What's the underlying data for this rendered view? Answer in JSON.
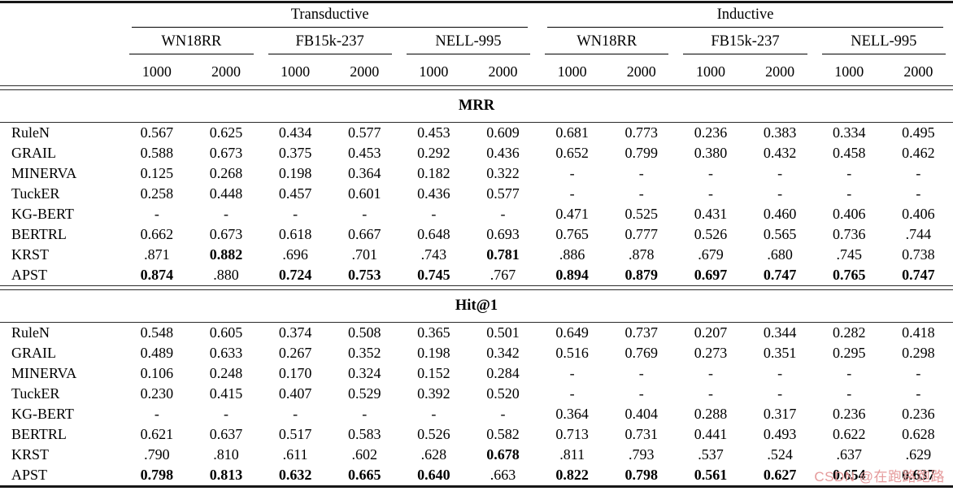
{
  "table": {
    "groups": [
      "Transductive",
      "Inductive"
    ],
    "datasets": [
      "WN18RR",
      "FB15k-237",
      "NELL-995"
    ],
    "shots": [
      "1000",
      "2000"
    ],
    "sections": [
      {
        "title": "MRR",
        "rows": [
          {
            "method": "RuleN",
            "values": [
              "0.567",
              "0.625",
              "0.434",
              "0.577",
              "0.453",
              "0.609",
              "0.681",
              "0.773",
              "0.236",
              "0.383",
              "0.334",
              "0.495"
            ],
            "bold": []
          },
          {
            "method": "GRAIL",
            "values": [
              "0.588",
              "0.673",
              "0.375",
              "0.453",
              "0.292",
              "0.436",
              "0.652",
              "0.799",
              "0.380",
              "0.432",
              "0.458",
              "0.462"
            ],
            "bold": []
          },
          {
            "method": "MINERVA",
            "values": [
              "0.125",
              "0.268",
              "0.198",
              "0.364",
              "0.182",
              "0.322",
              "-",
              "-",
              "-",
              "-",
              "-",
              "-"
            ],
            "bold": []
          },
          {
            "method": "TuckER",
            "values": [
              "0.258",
              "0.448",
              "0.457",
              "0.601",
              "0.436",
              "0.577",
              "-",
              "-",
              "-",
              "-",
              "-",
              "-"
            ],
            "bold": []
          },
          {
            "method": "KG-BERT",
            "values": [
              "-",
              "-",
              "-",
              "-",
              "-",
              "-",
              "0.471",
              "0.525",
              "0.431",
              "0.460",
              "0.406",
              "0.406"
            ],
            "bold": []
          },
          {
            "method": "BERTRL",
            "values": [
              "0.662",
              "0.673",
              "0.618",
              "0.667",
              "0.648",
              "0.693",
              "0.765",
              "0.777",
              "0.526",
              "0.565",
              "0.736",
              ".744"
            ],
            "bold": []
          },
          {
            "method": "KRST",
            "values": [
              ".871",
              "0.882",
              ".696",
              ".701",
              ".743",
              "0.781",
              ".886",
              ".878",
              ".679",
              ".680",
              ".745",
              "0.738"
            ],
            "bold": [
              1,
              5
            ]
          },
          {
            "method": "APST",
            "values": [
              "0.874",
              ".880",
              "0.724",
              "0.753",
              "0.745",
              ".767",
              "0.894",
              "0.879",
              "0.697",
              "0.747",
              "0.765",
              "0.747"
            ],
            "bold": [
              0,
              2,
              3,
              4,
              6,
              7,
              8,
              9,
              10,
              11
            ]
          }
        ]
      },
      {
        "title": "Hit@1",
        "rows": [
          {
            "method": "RuleN",
            "values": [
              "0.548",
              "0.605",
              "0.374",
              "0.508",
              "0.365",
              "0.501",
              "0.649",
              "0.737",
              "0.207",
              "0.344",
              "0.282",
              "0.418"
            ],
            "bold": []
          },
          {
            "method": "GRAIL",
            "values": [
              "0.489",
              "0.633",
              "0.267",
              "0.352",
              "0.198",
              "0.342",
              "0.516",
              "0.769",
              "0.273",
              "0.351",
              "0.295",
              "0.298"
            ],
            "bold": []
          },
          {
            "method": "MINERVA",
            "values": [
              "0.106",
              "0.248",
              "0.170",
              "0.324",
              "0.152",
              "0.284",
              "-",
              "-",
              "-",
              "-",
              "-",
              "-"
            ],
            "bold": []
          },
          {
            "method": "TuckER",
            "values": [
              "0.230",
              "0.415",
              "0.407",
              "0.529",
              "0.392",
              "0.520",
              "-",
              "-",
              "-",
              "-",
              "-",
              "-"
            ],
            "bold": []
          },
          {
            "method": "KG-BERT",
            "values": [
              "-",
              "-",
              "-",
              "-",
              "-",
              "-",
              "0.364",
              "0.404",
              "0.288",
              "0.317",
              "0.236",
              "0.236"
            ],
            "bold": []
          },
          {
            "method": "BERTRL",
            "values": [
              "0.621",
              "0.637",
              "0.517",
              "0.583",
              "0.526",
              "0.582",
              "0.713",
              "0.731",
              "0.441",
              "0.493",
              "0.622",
              "0.628"
            ],
            "bold": []
          },
          {
            "method": "KRST",
            "values": [
              ".790",
              ".810",
              ".611",
              ".602",
              ".628",
              "0.678",
              ".811",
              ".793",
              ".537",
              ".524",
              ".637",
              ".629"
            ],
            "bold": [
              5
            ]
          },
          {
            "method": "APST",
            "values": [
              "0.798",
              "0.813",
              "0.632",
              "0.665",
              "0.640",
              ".663",
              "0.822",
              "0.798",
              "0.561",
              "0.627",
              "0.654",
              "0.637"
            ],
            "bold": [
              0,
              1,
              2,
              3,
              4,
              6,
              7,
              8,
              9,
              10,
              11
            ]
          }
        ]
      }
    ]
  },
  "watermark": {
    "text": "CSDN @在跑路跑路",
    "color": "#e59a9b"
  }
}
